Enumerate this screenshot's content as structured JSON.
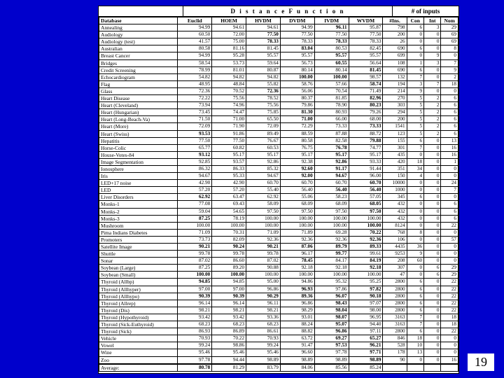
{
  "page": "19",
  "header": {
    "group1": "D i s t a n c e   F u n c t i o n",
    "group2": "# of inputs",
    "cols": [
      "Database",
      "Euclid",
      "HOEM",
      "HVDM",
      "DVDM",
      "IVDM",
      "WVDM",
      "#Ins.",
      "Con",
      "Int",
      "Nom"
    ]
  },
  "bold": {
    "0": [
      5
    ],
    "1": [
      3
    ],
    "2": [
      3,
      5
    ],
    "3": [
      4
    ],
    "4": [
      5
    ],
    "5": [
      5
    ],
    "6": [
      6
    ],
    "7": [
      4,
      5
    ],
    "8": [
      6
    ],
    "9": [
      3
    ],
    "10": [
      6
    ],
    "11": [
      6
    ],
    "12": [
      4
    ],
    "13": [
      4
    ],
    "14": [
      6
    ],
    "15": [
      1
    ],
    "16": [
      6
    ],
    "17": [
      5
    ],
    "18": [
      1,
      5
    ],
    "19": [
      5
    ],
    "20": [
      4,
      5
    ],
    "21": [
      4,
      5
    ],
    "22": [
      6
    ],
    "23": [
      5,
      6
    ],
    "24": [
      1
    ],
    "25": [
      6
    ],
    "26": [
      6
    ],
    "27": [
      1
    ],
    "28": [
      6
    ],
    "29": [
      6
    ],
    "30": [
      6
    ],
    "31": [
      1,
      2,
      3,
      4,
      5,
      6
    ],
    "32": [
      5
    ],
    "33": [
      4,
      6
    ],
    "34": [
      6
    ],
    "35": [
      1,
      2
    ],
    "36": [
      1
    ],
    "37": [
      4,
      6
    ],
    "38": [
      1,
      2,
      3,
      4,
      5,
      6
    ],
    "39": [
      5
    ],
    "40": [
      5
    ],
    "41": [
      5
    ],
    "42": [
      5
    ],
    "43": [
      5
    ],
    "44": [
      5,
      6
    ],
    "45": [
      5,
      6
    ],
    "46": [
      6
    ],
    "47": [
      6
    ],
    "48": [
      1
    ],
    "49": [
      5,
      6
    ],
    "50": [
      5
    ]
  },
  "rows": [
    [
      "Annealing",
      "94.99",
      "94.61",
      "94.61",
      "94.99",
      "96.11",
      "95.87",
      "798",
      "6",
      "3",
      "29"
    ],
    [
      "Audiology",
      "60.50",
      "72.00",
      "77.50",
      "77.50",
      "77.50",
      "77.50",
      "200",
      "0",
      "0",
      "69"
    ],
    [
      "Audiology (test)",
      "41.57",
      "75.00",
      "78.33",
      "78.33",
      "78.33",
      "78.33",
      "26",
      "0",
      "0",
      "69"
    ],
    [
      "Australian",
      "80.58",
      "81.16",
      "81.45",
      "83.04",
      "80.53",
      "82.45",
      "690",
      "6",
      "0",
      "8"
    ],
    [
      "Breast Cancer",
      "94.99",
      "95.28",
      "95.57",
      "95.57",
      "95.57",
      "95.57",
      "699",
      "0",
      "9",
      "0"
    ],
    [
      "Bridges",
      "58.54",
      "53.73",
      "59.64",
      "56.73",
      "60.55",
      "56.64",
      "108",
      "1",
      "3",
      "7"
    ],
    [
      "Credit Screening",
      "78.99",
      "81.01",
      "80.87",
      "80.14",
      "80.14",
      "81.45",
      "690",
      "6",
      "0",
      "9"
    ],
    [
      "Echocardiogram",
      "54.82",
      "94.82",
      "94.82",
      "100.00",
      "100.00",
      "98.57",
      "132",
      "7",
      "0",
      "2"
    ],
    [
      "Flag",
      "48.95",
      "48.84",
      "55.82",
      "58.76",
      "57.66",
      "58.74",
      "194",
      "3",
      "7",
      "18"
    ],
    [
      "Glass",
      "72.36",
      "70.52",
      "72.36",
      "56.06",
      "70.54",
      "71.49",
      "214",
      "9",
      "0",
      "0"
    ],
    [
      "Heart Disease",
      "72.22",
      "75.56",
      "78.52",
      "80.37",
      "81.85",
      "82.96",
      "270",
      "5",
      "2",
      "6"
    ],
    [
      "Heart (Cleveland)",
      "73.94",
      "74.96",
      "75.56",
      "79.86",
      "78.90",
      "80.23",
      "303",
      "5",
      "2",
      "6"
    ],
    [
      "Heart (Hungarian)",
      "73.45",
      "74.47",
      "75.85",
      "81.30",
      "80.93",
      "79.26",
      "294",
      "5",
      "2",
      "6"
    ],
    [
      "Heart (Long-Beach-Va)",
      "71.50",
      "71.00",
      "65.50",
      "71.00",
      "66.00",
      "68.00",
      "200",
      "5",
      "2",
      "6"
    ],
    [
      "Heart (More)",
      "72.09",
      "71.90",
      "72.09",
      "72.29",
      "73.33",
      "73.33",
      "1541",
      "5",
      "2",
      "6"
    ],
    [
      "Heart (Swiss)",
      "93.53",
      "91.86",
      "89.49",
      "88.59",
      "87.88",
      "88.72",
      "123",
      "5",
      "2",
      "6"
    ],
    [
      "Hepatitis",
      "77.50",
      "77.50",
      "76.67",
      "80.58",
      "82.58",
      "79.88",
      "155",
      "6",
      "0",
      "13"
    ],
    [
      "Horse-Colic",
      "65.77",
      "60.82",
      "60.53",
      "76.75",
      "76.78",
      "74.77",
      "301",
      "7",
      "0",
      "16"
    ],
    [
      "House-Votes-84",
      "93.12",
      "95.17",
      "95.17",
      "95.17",
      "95.17",
      "95.17",
      "435",
      "0",
      "0",
      "16"
    ],
    [
      "Image Segmentation",
      "92.85",
      "93.57",
      "92.86",
      "92.38",
      "92.86",
      "93.33",
      "420",
      "18",
      "0",
      "1"
    ],
    [
      "Ionosphere",
      "86.32",
      "86.33",
      "85.32",
      "92.60",
      "91.17",
      "91.44",
      "351",
      "34",
      "0",
      "0"
    ],
    [
      "Iris",
      "94.67",
      "95.33",
      "94.67",
      "92.00",
      "94.67",
      "96.00",
      "150",
      "4",
      "0",
      "0"
    ],
    [
      "LED+17 noise",
      "42.90",
      "42.90",
      "60.70",
      "60.70",
      "60.70",
      "60.70",
      "10000",
      "0",
      "0",
      "24"
    ],
    [
      "LED",
      "57.20",
      "57.20",
      "55.40",
      "56.40",
      "56.40",
      "56.40",
      "1000",
      "0",
      "0",
      "7"
    ],
    [
      "Liver Disorders",
      "62.92",
      "63.47",
      "62.92",
      "55.06",
      "58.23",
      "57.05",
      "345",
      "6",
      "0",
      "0"
    ],
    [
      "Monks-1",
      "77.08",
      "69.43",
      "58.09",
      "68.09",
      "68.09",
      "68.05",
      "432",
      "0",
      "0",
      "6"
    ],
    [
      "Monks-2",
      "59.04",
      "54.65",
      "97.50",
      "97.50",
      "97.50",
      "97.50",
      "432",
      "0",
      "0",
      "6"
    ],
    [
      "Monks-3",
      "87.25",
      "78.19",
      "100.00",
      "100.00",
      "100.00",
      "100.00",
      "432",
      "0",
      "0",
      "6"
    ],
    [
      "Mushroom",
      "100.00",
      "100.00",
      "100.00",
      "100.00",
      "100.00",
      "100.00",
      "8124",
      "0",
      "0",
      "22"
    ],
    [
      "Pima Indians Diabetes",
      "71.09",
      "70.31",
      "71.09",
      "71.89",
      "69.28",
      "70.22",
      "768",
      "8",
      "0",
      "0"
    ],
    [
      "Promoters",
      "73.73",
      "82.09",
      "92.36",
      "92.36",
      "92.36",
      "92.36",
      "106",
      "0",
      "0",
      "57"
    ],
    [
      "Satellite Image",
      "90.21",
      "90.24",
      "90.21",
      "87.06",
      "89.79",
      "89.33",
      "4435",
      "36",
      "0",
      "0"
    ],
    [
      "Shuttle",
      "99.78",
      "99.78",
      "99.78",
      "96.17",
      "99.77",
      "99.61",
      "9253",
      "9",
      "0",
      "0"
    ],
    [
      "Sonar",
      "87.02",
      "86.60",
      "87.02",
      "78.45",
      "84.17",
      "84.19",
      "208",
      "60",
      "0",
      "0"
    ],
    [
      "Soybean (Large)",
      "87.25",
      "89.20",
      "90.88",
      "92.18",
      "92.18",
      "92.18",
      "307",
      "0",
      "6",
      "29"
    ],
    [
      "Soybean (Small)",
      "100.00",
      "100.00",
      "100.00",
      "100.00",
      "100.00",
      "100.00",
      "47",
      "0",
      "6",
      "29"
    ],
    [
      "Thyroid (Allbp)",
      "94.85",
      "94.85",
      "95.00",
      "94.86",
      "95.32",
      "95.25",
      "2800",
      "6",
      "0",
      "22"
    ],
    [
      "Thyroid (Allhyper)",
      "97.00",
      "97.00",
      "96.86",
      "96.93",
      "97.86",
      "97.82",
      "2800",
      "6",
      "0",
      "22"
    ],
    [
      "Thyroid (Allhypo)",
      "90.39",
      "90.39",
      "90.29",
      "89.36",
      "96.07",
      "90.18",
      "2800",
      "6",
      "0",
      "22"
    ],
    [
      "Thyroid (Allrep)",
      "96.14",
      "96.14",
      "96.11",
      "96.86",
      "98.43",
      "97.07",
      "2800",
      "6",
      "0",
      "22"
    ],
    [
      "Thyroid (Dis)",
      "98.21",
      "98.21",
      "98.21",
      "98.29",
      "98.04",
      "98.00",
      "2800",
      "6",
      "0",
      "22"
    ],
    [
      "Thyroid (Hypothyroid)",
      "93.42",
      "93.42",
      "93.36",
      "93.01",
      "98.07",
      "96.95",
      "3163",
      "7",
      "0",
      "18"
    ],
    [
      "Thyroid (Sick-Euthyroid)",
      "68.23",
      "68.23",
      "68.23",
      "88.24",
      "95.07",
      "94.40",
      "3163",
      "7",
      "0",
      "18"
    ],
    [
      "Thyroid (Sick)",
      "86.93",
      "86.89",
      "86.61",
      "88.82",
      "96.86",
      "97.11",
      "2800",
      "6",
      "0",
      "22"
    ],
    [
      "Vehicle",
      "70.93",
      "70.22",
      "70.93",
      "63.72",
      "69.27",
      "65.27",
      "846",
      "18",
      "0",
      "0"
    ],
    [
      "Vowel",
      "99.24",
      "98.86",
      "99.24",
      "91.47",
      "97.53",
      "96.21",
      "528",
      "10",
      "0",
      "0"
    ],
    [
      "Wine",
      "95.46",
      "95.46",
      "95.46",
      "96.60",
      "97.78",
      "97.71",
      "178",
      "13",
      "0",
      "0"
    ],
    [
      "Zoo",
      "97.78",
      "94.44",
      "98.89",
      "98.89",
      "98.89",
      "98.89",
      "90",
      "0",
      "0",
      "16"
    ],
    [
      "Average:",
      "80.78",
      "81.29",
      "83.79",
      "84.06",
      "85.56",
      "85.24",
      "",
      "",
      "",
      ""
    ]
  ]
}
